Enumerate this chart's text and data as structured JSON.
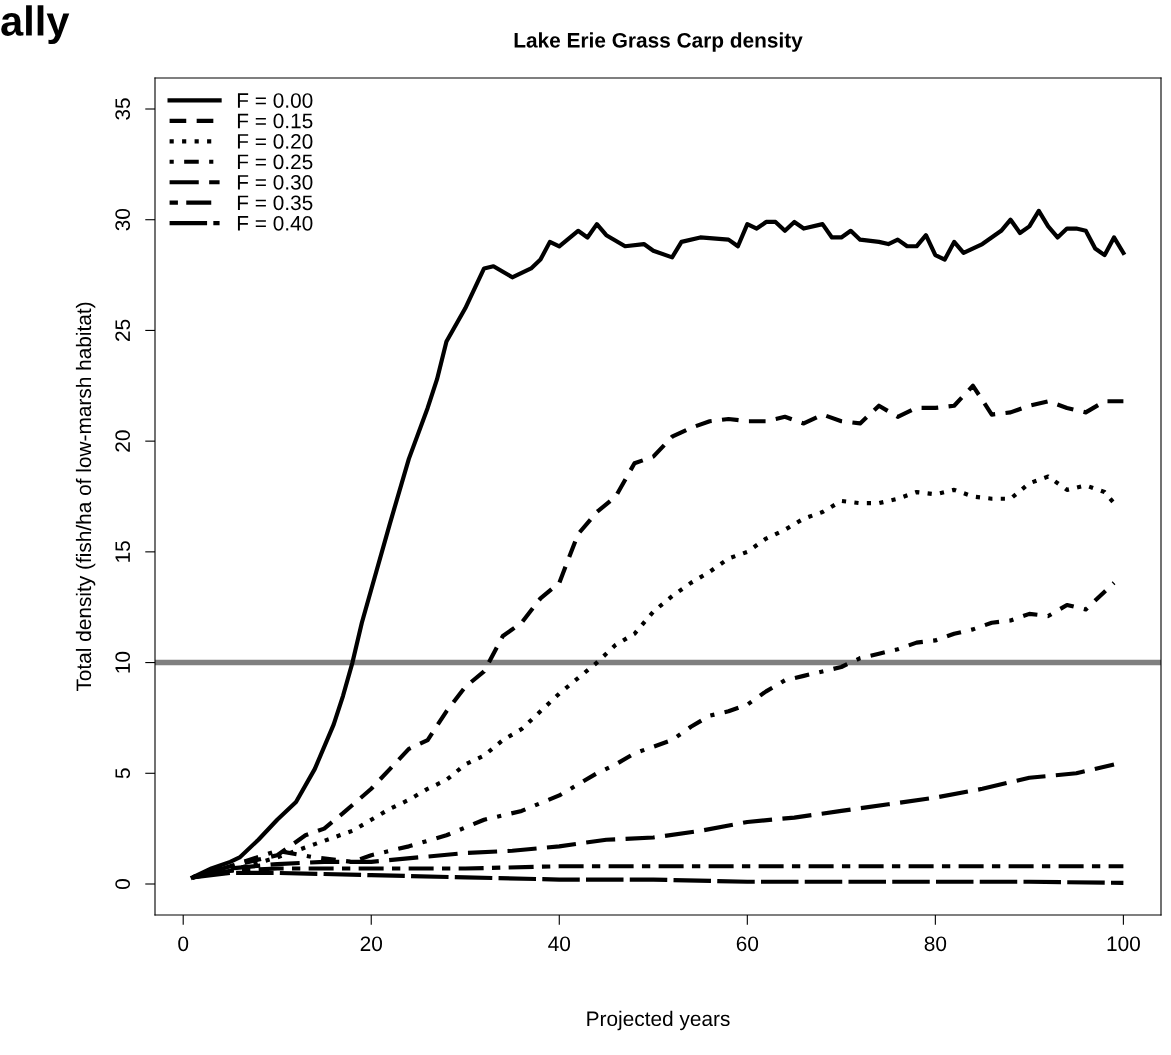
{
  "chart_data": {
    "type": "line",
    "title": "Lake Erie Grass Carp density",
    "xlabel": "Projected years",
    "ylabel": "Total density (fish/ha of low-marsh habitat)",
    "annotations": [
      "ally"
    ],
    "xlim": [
      -3,
      104
    ],
    "xticks": [
      0,
      20,
      40,
      60,
      80,
      100
    ],
    "ylim": [
      -1.4,
      36.4
    ],
    "yticks": [
      0,
      5,
      10,
      15,
      20,
      25,
      30,
      35
    ],
    "legend": "top left",
    "grid": false,
    "ref_lines": [
      {
        "axis": "y",
        "value": 10,
        "color": "#808080",
        "line_style": "solid"
      }
    ],
    "series": [
      {
        "name": "F = 0.00",
        "color": "#000000",
        "line_style": "solid",
        "x": [
          1,
          3,
          5,
          6,
          8,
          10,
          12,
          14,
          16,
          17,
          18,
          19,
          20,
          22,
          24,
          26,
          27,
          28,
          30,
          32,
          33,
          35,
          37,
          38,
          39,
          40,
          42,
          43,
          44,
          45,
          47,
          49,
          50,
          52,
          53,
          55,
          58,
          59,
          60,
          61,
          62,
          63,
          64,
          65,
          66,
          68,
          69,
          70,
          71,
          72,
          74,
          75,
          76,
          77,
          78,
          79,
          80,
          81,
          82,
          83,
          85,
          87,
          88,
          89,
          90,
          91,
          92,
          93,
          94,
          95,
          96,
          97,
          98,
          99,
          100
        ],
        "values": [
          0.3,
          0.7,
          1.0,
          1.2,
          2.0,
          2.9,
          3.7,
          5.2,
          7.2,
          8.5,
          10,
          11.8,
          13.3,
          16.3,
          19.2,
          21.5,
          22.8,
          24.5,
          26.0,
          27.8,
          27.9,
          27.4,
          27.8,
          28.2,
          29.0,
          28.8,
          29.5,
          29.2,
          29.8,
          29.3,
          28.8,
          28.9,
          28.6,
          28.3,
          29.0,
          29.2,
          29.1,
          28.8,
          29.8,
          29.6,
          29.9,
          29.9,
          29.5,
          29.9,
          29.6,
          29.8,
          29.2,
          29.2,
          29.5,
          29.1,
          29.0,
          28.9,
          29.1,
          28.8,
          28.8,
          29.3,
          28.4,
          28.2,
          29.0,
          28.5,
          28.9,
          29.5,
          30.0,
          29.4,
          29.7,
          30.4,
          29.7,
          29.2,
          29.6,
          29.6,
          29.5,
          28.7,
          28.4,
          29.2,
          28.5
        ]
      },
      {
        "name": "F = 0.15",
        "color": "#000000",
        "line_style": "dashed",
        "x": [
          1,
          5,
          10,
          13,
          15,
          17,
          20,
          22,
          24,
          26,
          28,
          30,
          32,
          34,
          36,
          38,
          40,
          42,
          44,
          46,
          48,
          50,
          52,
          54,
          56,
          58,
          60,
          62,
          64,
          66,
          68,
          70,
          72,
          74,
          76,
          78,
          80,
          82,
          84,
          86,
          88,
          90,
          92,
          94,
          96,
          98,
          100
        ],
        "values": [
          0.3,
          0.8,
          1.3,
          2.2,
          2.5,
          3.2,
          4.3,
          5.2,
          6.1,
          6.5,
          7.8,
          8.9,
          9.6,
          11.2,
          11.8,
          12.9,
          13.6,
          15.8,
          16.8,
          17.5,
          19.0,
          19.3,
          20.2,
          20.6,
          20.9,
          21.0,
          20.9,
          20.9,
          21.1,
          20.8,
          21.2,
          20.9,
          20.8,
          21.6,
          21.1,
          21.5,
          21.5,
          21.6,
          22.5,
          21.2,
          21.3,
          21.6,
          21.8,
          21.5,
          21.3,
          21.8,
          21.8
        ]
      },
      {
        "name": "F = 0.20",
        "color": "#000000",
        "line_style": "dotted",
        "x": [
          1,
          5,
          10,
          14,
          18,
          20,
          22,
          24,
          26,
          28,
          30,
          32,
          34,
          36,
          38,
          40,
          42,
          44,
          46,
          48,
          50,
          52,
          54,
          56,
          58,
          60,
          62,
          64,
          66,
          68,
          70,
          72,
          74,
          76,
          78,
          80,
          82,
          84,
          86,
          88,
          90,
          92,
          94,
          96,
          98,
          99
        ],
        "values": [
          0.3,
          0.6,
          1.2,
          1.8,
          2.4,
          2.9,
          3.4,
          3.8,
          4.3,
          4.7,
          5.4,
          5.8,
          6.5,
          7.0,
          7.8,
          8.6,
          9.3,
          10.0,
          10.8,
          11.3,
          12.3,
          13.0,
          13.6,
          14.1,
          14.7,
          15.0,
          15.6,
          16.0,
          16.5,
          16.8,
          17.3,
          17.2,
          17.2,
          17.4,
          17.7,
          17.6,
          17.8,
          17.5,
          17.4,
          17.4,
          18.1,
          18.4,
          17.8,
          18.0,
          17.7,
          17.2
        ]
      },
      {
        "name": "F = 0.25",
        "color": "#000000",
        "line_style": "dashdot",
        "x": [
          1,
          5,
          10,
          14,
          18,
          20,
          24,
          28,
          32,
          36,
          40,
          42,
          44,
          46,
          48,
          50,
          52,
          54,
          56,
          58,
          60,
          62,
          64,
          66,
          68,
          70,
          72,
          74,
          76,
          78,
          80,
          82,
          84,
          86,
          88,
          90,
          92,
          94,
          96,
          98,
          99
        ],
        "values": [
          0.3,
          0.8,
          1.5,
          1.2,
          1.0,
          1.3,
          1.7,
          2.2,
          2.9,
          3.3,
          4.0,
          4.5,
          5.0,
          5.4,
          5.9,
          6.2,
          6.5,
          7.1,
          7.6,
          7.8,
          8.1,
          8.7,
          9.2,
          9.4,
          9.6,
          9.8,
          10.2,
          10.4,
          10.6,
          10.9,
          11.0,
          11.3,
          11.5,
          11.8,
          11.9,
          12.2,
          12.1,
          12.6,
          12.4,
          13.2,
          13.6
        ]
      },
      {
        "name": "F = 0.30",
        "color": "#000000",
        "line_style": "longdash",
        "x": [
          1,
          5,
          10,
          15,
          20,
          25,
          30,
          35,
          40,
          45,
          50,
          55,
          60,
          65,
          70,
          75,
          80,
          85,
          90,
          95,
          99
        ],
        "values": [
          0.3,
          0.7,
          0.9,
          1.0,
          1.0,
          1.2,
          1.4,
          1.5,
          1.7,
          2.0,
          2.1,
          2.4,
          2.8,
          3.0,
          3.3,
          3.6,
          3.9,
          4.3,
          4.8,
          5.0,
          5.4
        ]
      },
      {
        "name": "F = 0.35",
        "color": "#000000",
        "line_style": "twodash",
        "x": [
          1,
          5,
          10,
          20,
          30,
          40,
          50,
          60,
          70,
          80,
          90,
          100
        ],
        "values": [
          0.3,
          0.6,
          0.7,
          0.7,
          0.7,
          0.8,
          0.8,
          0.8,
          0.8,
          0.8,
          0.8,
          0.8
        ]
      },
      {
        "name": "F = 0.40",
        "color": "#000000",
        "line_style": "longdash2",
        "x": [
          1,
          5,
          10,
          20,
          30,
          40,
          50,
          60,
          70,
          80,
          90,
          100
        ],
        "values": [
          0.3,
          0.5,
          0.5,
          0.4,
          0.3,
          0.2,
          0.2,
          0.1,
          0.1,
          0.1,
          0.1,
          0.05
        ]
      }
    ]
  }
}
